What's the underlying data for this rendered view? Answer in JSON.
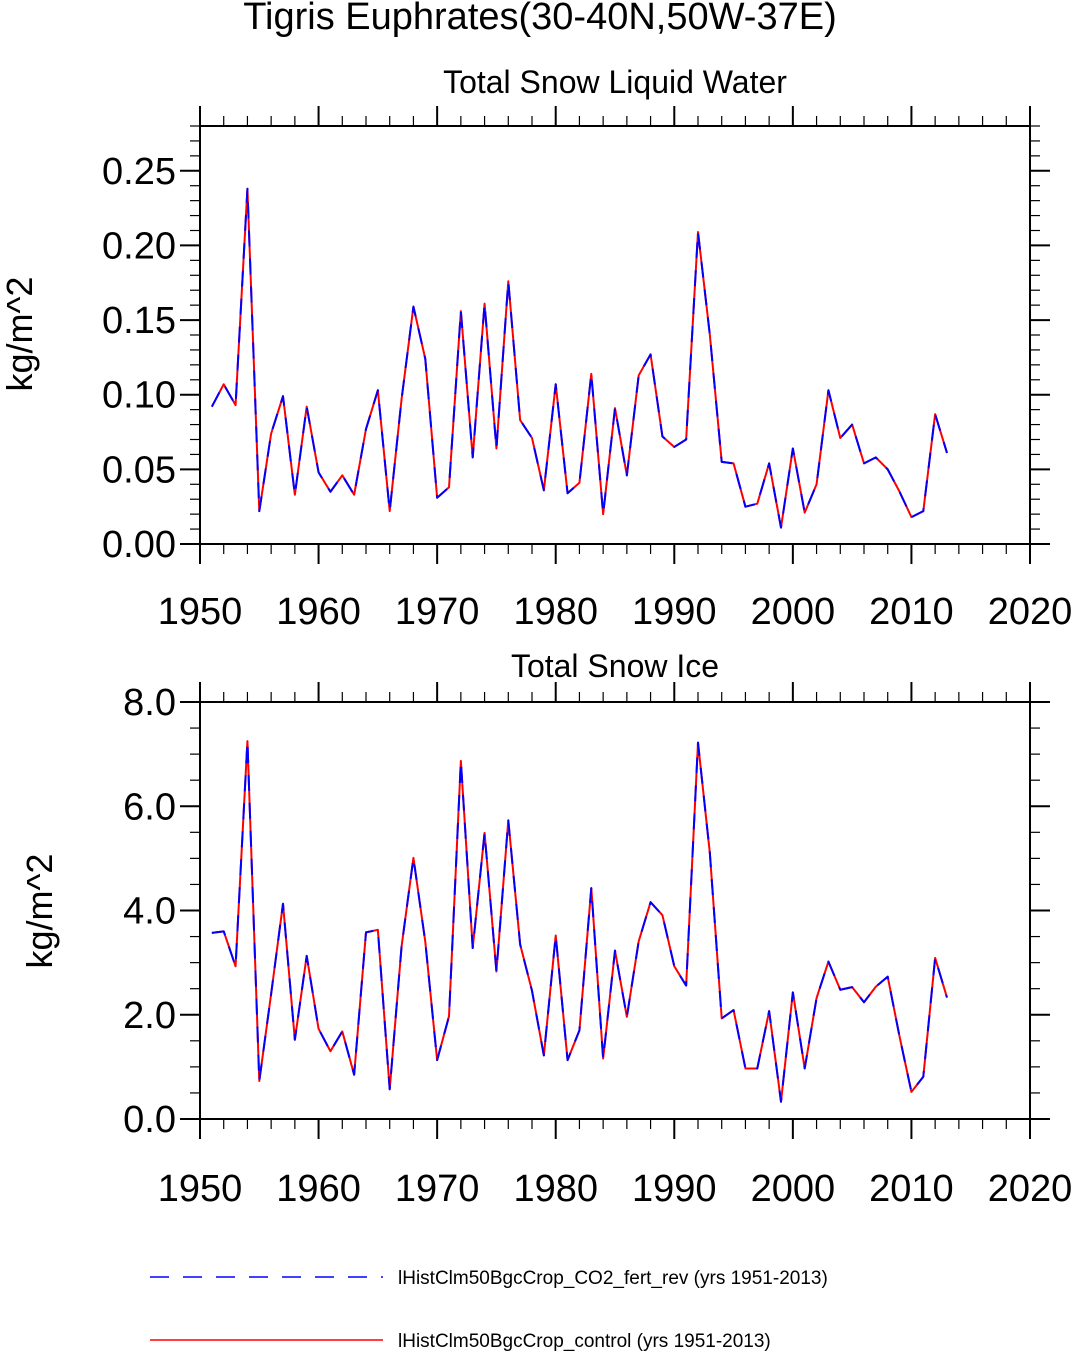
{
  "figure_title": "Tigris Euphrates(30-40N,50W-37E)",
  "chart_data": [
    {
      "type": "line",
      "title": "Total Snow Liquid Water",
      "xlabel": "",
      "ylabel": "kg/m^2",
      "xlim": [
        1950,
        2020
      ],
      "ylim": [
        0.0,
        0.28
      ],
      "xticks": [
        "1950",
        "1960",
        "1970",
        "1980",
        "1990",
        "2000",
        "2010",
        "2020"
      ],
      "yticks": [
        "0.00",
        "0.05",
        "0.10",
        "0.15",
        "0.20",
        "0.25"
      ],
      "x_start": 1951,
      "series": [
        {
          "name": "lHistClm50BgcCrop_CO2_fert_rev (yrs 1951-2013)",
          "color": "#0000ff",
          "dash": "dashed",
          "values": [
            0.092,
            0.107,
            0.093,
            0.238,
            0.022,
            0.074,
            0.099,
            0.033,
            0.092,
            0.048,
            0.035,
            0.046,
            0.033,
            0.077,
            0.103,
            0.022,
            0.097,
            0.159,
            0.124,
            0.031,
            0.038,
            0.156,
            0.058,
            0.161,
            0.064,
            0.176,
            0.083,
            0.071,
            0.036,
            0.107,
            0.034,
            0.041,
            0.114,
            0.02,
            0.091,
            0.046,
            0.113,
            0.127,
            0.072,
            0.065,
            0.07,
            0.209,
            0.14,
            0.055,
            0.054,
            0.025,
            0.027,
            0.054,
            0.011,
            0.064,
            0.021,
            0.04,
            0.103,
            0.071,
            0.08,
            0.054,
            0.058,
            0.05,
            0.035,
            0.018,
            0.022,
            0.087,
            0.061
          ]
        },
        {
          "name": "lHistClm50BgcCrop_control (yrs 1951-2013)",
          "color": "#ff0000",
          "dash": "solid",
          "values": [
            0.092,
            0.107,
            0.093,
            0.238,
            0.022,
            0.074,
            0.099,
            0.033,
            0.092,
            0.048,
            0.035,
            0.046,
            0.033,
            0.077,
            0.103,
            0.022,
            0.097,
            0.159,
            0.124,
            0.031,
            0.038,
            0.156,
            0.058,
            0.161,
            0.064,
            0.176,
            0.083,
            0.071,
            0.036,
            0.107,
            0.034,
            0.041,
            0.114,
            0.02,
            0.091,
            0.046,
            0.113,
            0.127,
            0.072,
            0.065,
            0.07,
            0.209,
            0.14,
            0.055,
            0.054,
            0.025,
            0.027,
            0.054,
            0.011,
            0.064,
            0.021,
            0.04,
            0.103,
            0.071,
            0.08,
            0.054,
            0.058,
            0.05,
            0.035,
            0.018,
            0.022,
            0.087,
            0.061
          ]
        }
      ]
    },
    {
      "type": "line",
      "title": "Total Snow Ice",
      "xlabel": "",
      "ylabel": "kg/m^2",
      "xlim": [
        1950,
        2020
      ],
      "ylim": [
        0.0,
        8.0
      ],
      "xticks": [
        "1950",
        "1960",
        "1970",
        "1980",
        "1990",
        "2000",
        "2010",
        "2020"
      ],
      "yticks": [
        "0.0",
        "2.0",
        "4.0",
        "6.0",
        "8.0"
      ],
      "x_start": 1951,
      "series": [
        {
          "name": "lHistClm50BgcCrop_CO2_fert_rev (yrs 1951-2013)",
          "color": "#0000ff",
          "dash": "dashed",
          "values": [
            3.57,
            3.6,
            2.93,
            7.25,
            0.73,
            2.4,
            4.13,
            1.52,
            3.13,
            1.73,
            1.3,
            1.68,
            0.85,
            3.58,
            3.63,
            0.57,
            3.31,
            5.01,
            3.4,
            1.13,
            1.97,
            6.87,
            3.28,
            5.49,
            2.83,
            5.73,
            3.35,
            2.46,
            1.22,
            3.52,
            1.13,
            1.7,
            4.43,
            1.16,
            3.23,
            1.96,
            3.41,
            4.16,
            3.91,
            2.93,
            2.56,
            7.22,
            5.1,
            1.93,
            2.09,
            0.97,
            0.97,
            2.07,
            0.33,
            2.43,
            0.97,
            2.32,
            3.02,
            2.48,
            2.53,
            2.24,
            2.54,
            2.73,
            1.58,
            0.52,
            0.81,
            3.09,
            2.33
          ]
        },
        {
          "name": "lHistClm50BgcCrop_control (yrs 1951-2013)",
          "color": "#ff0000",
          "dash": "solid",
          "values": [
            3.57,
            3.6,
            2.93,
            7.25,
            0.73,
            2.4,
            4.13,
            1.52,
            3.13,
            1.73,
            1.3,
            1.68,
            0.85,
            3.58,
            3.63,
            0.57,
            3.31,
            5.01,
            3.4,
            1.13,
            1.97,
            6.87,
            3.28,
            5.49,
            2.83,
            5.73,
            3.35,
            2.46,
            1.22,
            3.52,
            1.13,
            1.7,
            4.43,
            1.16,
            3.23,
            1.96,
            3.41,
            4.16,
            3.91,
            2.93,
            2.56,
            7.22,
            5.1,
            1.93,
            2.09,
            0.97,
            0.97,
            2.07,
            0.33,
            2.43,
            0.97,
            2.32,
            3.02,
            2.48,
            2.53,
            2.24,
            2.54,
            2.73,
            1.58,
            0.52,
            0.81,
            3.09,
            2.33
          ]
        }
      ]
    }
  ],
  "legend": [
    {
      "label": "lHistClm50BgcCrop_CO2_fert_rev (yrs 1951-2013)",
      "color": "#0000ff",
      "dash": "dashed"
    },
    {
      "label": "lHistClm50BgcCrop_control (yrs 1951-2013)",
      "color": "#ff0000",
      "dash": "solid"
    }
  ]
}
